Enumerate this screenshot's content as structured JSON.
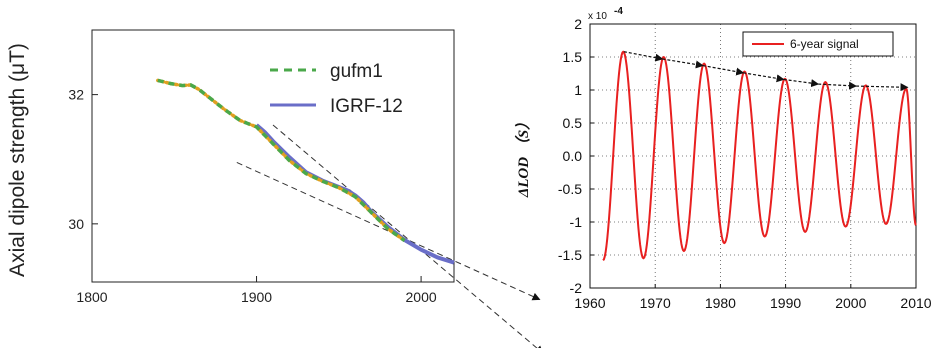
{
  "chart_data": [
    {
      "type": "line",
      "ylabel": "Axial dipole strength (μT)",
      "xlabel": "",
      "xlim": [
        1800,
        2020
      ],
      "ylim": [
        29.1,
        33.0
      ],
      "xticks": [
        "1800",
        "1900",
        "2000"
      ],
      "xtick_values": [
        1800,
        1900,
        2000
      ],
      "yticks": [
        "30",
        "32"
      ],
      "ytick_values": [
        30,
        32
      ],
      "legend_position": "top-right",
      "series": [
        {
          "name": "gufm1",
          "style": "dashed",
          "color": "#4aa84a",
          "dot_color": "#e0a020",
          "x": [
            1840,
            1848,
            1855,
            1860,
            1865,
            1870,
            1880,
            1890,
            1900,
            1910,
            1920,
            1930,
            1940,
            1950,
            1960,
            1970,
            1980,
            1990
          ],
          "y": [
            32.22,
            32.17,
            32.14,
            32.15,
            32.08,
            31.98,
            31.78,
            31.6,
            31.5,
            31.24,
            30.98,
            30.78,
            30.66,
            30.56,
            30.42,
            30.17,
            29.92,
            29.74
          ]
        },
        {
          "name": "IGRF-12",
          "style": "solid",
          "color": "#6a6ec8",
          "x": [
            1900,
            1905,
            1910,
            1920,
            1930,
            1940,
            1950,
            1955,
            1960,
            1965,
            1970,
            1980,
            1990,
            2000,
            2010,
            2020
          ],
          "y": [
            31.53,
            31.42,
            31.28,
            31.03,
            30.8,
            30.67,
            30.57,
            30.52,
            30.44,
            30.33,
            30.18,
            29.95,
            29.75,
            29.6,
            29.48,
            29.4
          ]
        }
      ],
      "annotations": [
        {
          "type": "dashed-trend",
          "x": [
            1910,
            2074
          ],
          "y": [
            31.53,
            28.0
          ]
        },
        {
          "type": "dashed-trend",
          "x": [
            1888,
            2072
          ],
          "y": [
            30.95,
            28.83
          ]
        }
      ]
    },
    {
      "type": "line",
      "ylabel": "ΔLOD （S）",
      "xlabel": "",
      "xlim": [
        1960,
        2010
      ],
      "ylim": [
        -2,
        2
      ],
      "scale_label": "x 10",
      "scale_exponent": "-4",
      "xticks": [
        "1960",
        "1970",
        "1980",
        "1990",
        "2000",
        "2010"
      ],
      "xtick_values": [
        1960,
        1970,
        1980,
        1990,
        2000,
        2010
      ],
      "yticks": [
        "-2",
        "-1.5",
        "-1",
        "-0.5",
        "0.0",
        "0.5",
        "1",
        "1.5",
        "2"
      ],
      "ytick_values": [
        -2,
        -1.5,
        -1,
        -0.5,
        0,
        0.5,
        1,
        1.5,
        2
      ],
      "grid": true,
      "legend_position": "top-right",
      "series": [
        {
          "name": "6-year signal",
          "color": "#e82020",
          "x": [
            1962,
            1965.1,
            1968.2,
            1971.3,
            1974.4,
            1977.5,
            1980.6,
            1983.7,
            1986.8,
            1989.9,
            1993.0,
            1996.1,
            1999.2,
            2002.3,
            2005.4,
            2008.5,
            2010
          ],
          "y": [
            -1.58,
            1.58,
            -1.55,
            1.5,
            -1.44,
            1.4,
            -1.32,
            1.28,
            -1.22,
            1.17,
            -1.15,
            1.12,
            -1.07,
            1.07,
            -1.03,
            1.02,
            -1.05
          ]
        }
      ],
      "annotations": [
        {
          "type": "dashed-arrow-trend",
          "x": [
            1965.2,
            1971.1,
            1977.3,
            1983.5,
            1989.7,
            1995.0,
            2000.8,
            2008.7
          ],
          "y": [
            1.58,
            1.47,
            1.37,
            1.26,
            1.16,
            1.09,
            1.06,
            1.04
          ]
        }
      ]
    }
  ]
}
